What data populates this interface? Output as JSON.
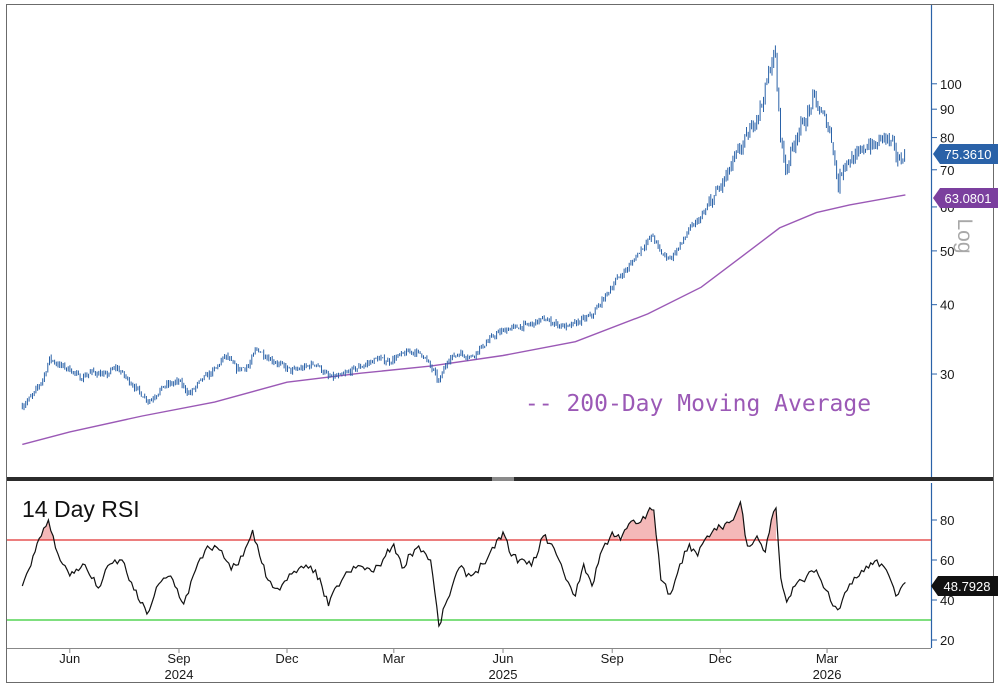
{
  "chart_data": [
    {
      "type": "line",
      "panel": "price",
      "scale": "log",
      "scale_label": "Log",
      "ylim": [
        21,
        125
      ],
      "y_ticks": [
        30,
        40,
        50,
        60,
        70,
        80,
        90,
        100
      ],
      "series": [
        {
          "role": "price",
          "style": "ohlc-bars",
          "color": "#2a62a8",
          "last_value": "75.3610",
          "points": [
            [
              "2024-04-22",
              26.3
            ],
            [
              "2024-05-01",
              27.5
            ],
            [
              "2024-05-10",
              29.6
            ],
            [
              "2024-05-15",
              32.0
            ],
            [
              "2024-05-22",
              31.2
            ],
            [
              "2024-06-01",
              30.6
            ],
            [
              "2024-06-10",
              29.5
            ],
            [
              "2024-06-20",
              30.3
            ],
            [
              "2024-07-01",
              29.8
            ],
            [
              "2024-07-10",
              30.9
            ],
            [
              "2024-07-20",
              29.3
            ],
            [
              "2024-08-01",
              27.5
            ],
            [
              "2024-08-07",
              26.8
            ],
            [
              "2024-08-20",
              28.6
            ],
            [
              "2024-09-01",
              29.1
            ],
            [
              "2024-09-10",
              27.6
            ],
            [
              "2024-09-20",
              29.3
            ],
            [
              "2024-10-01",
              30.5
            ],
            [
              "2024-10-10",
              32.4
            ],
            [
              "2024-10-20",
              30.6
            ],
            [
              "2024-10-30",
              31.0
            ],
            [
              "2024-11-05",
              33.4
            ],
            [
              "2024-11-15",
              32.1
            ],
            [
              "2024-11-25",
              31.2
            ],
            [
              "2024-12-05",
              30.4
            ],
            [
              "2024-12-15",
              30.8
            ],
            [
              "2024-12-25",
              31.4
            ],
            [
              "2025-01-05",
              29.6
            ],
            [
              "2025-01-15",
              29.7
            ],
            [
              "2025-01-25",
              30.5
            ],
            [
              "2025-02-05",
              31.2
            ],
            [
              "2025-02-15",
              32.0
            ],
            [
              "2025-02-25",
              31.6
            ],
            [
              "2025-03-05",
              32.3
            ],
            [
              "2025-03-15",
              33.0
            ],
            [
              "2025-03-25",
              32.6
            ],
            [
              "2025-04-04",
              30.2
            ],
            [
              "2025-04-08",
              29.0
            ],
            [
              "2025-04-15",
              31.8
            ],
            [
              "2025-04-25",
              32.7
            ],
            [
              "2025-05-05",
              32.2
            ],
            [
              "2025-05-15",
              33.7
            ],
            [
              "2025-05-25",
              35.3
            ],
            [
              "2025-06-05",
              36.2
            ],
            [
              "2025-06-15",
              36.5
            ],
            [
              "2025-06-25",
              36.9
            ],
            [
              "2025-07-05",
              37.7
            ],
            [
              "2025-07-15",
              37.0
            ],
            [
              "2025-07-25",
              36.4
            ],
            [
              "2025-08-05",
              37.4
            ],
            [
              "2025-08-15",
              38.3
            ],
            [
              "2025-08-25",
              41.1
            ],
            [
              "2025-09-05",
              44.5
            ],
            [
              "2025-09-15",
              46.8
            ],
            [
              "2025-09-25",
              50.3
            ],
            [
              "2025-10-05",
              53.3
            ],
            [
              "2025-10-12",
              49.5
            ],
            [
              "2025-10-20",
              48.5
            ],
            [
              "2025-10-28",
              51.0
            ],
            [
              "2025-11-05",
              54.7
            ],
            [
              "2025-11-15",
              57.5
            ],
            [
              "2025-11-25",
              62.3
            ],
            [
              "2025-12-05",
              67.3
            ],
            [
              "2025-12-15",
              74.7
            ],
            [
              "2025-12-25",
              81.3
            ],
            [
              "2026-01-05",
              91.8
            ],
            [
              "2026-01-12",
              107.0
            ],
            [
              "2026-01-16",
              115.0
            ],
            [
              "2026-01-20",
              84.0
            ],
            [
              "2026-01-25",
              69.5
            ],
            [
              "2026-01-30",
              76.0
            ],
            [
              "2026-02-05",
              82.6
            ],
            [
              "2026-02-12",
              86.9
            ],
            [
              "2026-02-18",
              95.0
            ],
            [
              "2026-02-22",
              89.7
            ],
            [
              "2026-03-01",
              85.3
            ],
            [
              "2026-03-06",
              77.5
            ],
            [
              "2026-03-10",
              65.0
            ],
            [
              "2026-03-15",
              72.0
            ],
            [
              "2026-03-25",
              73.6
            ],
            [
              "2026-04-05",
              78.0
            ],
            [
              "2026-04-10",
              76.7
            ],
            [
              "2026-04-17",
              80.8
            ],
            [
              "2026-04-25",
              77.7
            ],
            [
              "2026-05-01",
              72.3
            ],
            [
              "2026-05-06",
              75.4
            ]
          ]
        },
        {
          "role": "moving-average",
          "name": "-- 200-Day Moving Average",
          "color": "#9b59b6",
          "last_value": "63.0801",
          "points": [
            [
              "2024-04-22",
              22.4
            ],
            [
              "2024-06-01",
              23.6
            ],
            [
              "2024-08-01",
              25.2
            ],
            [
              "2024-10-01",
              26.7
            ],
            [
              "2024-12-01",
              29.0
            ],
            [
              "2025-02-01",
              30.1
            ],
            [
              "2025-04-01",
              31.0
            ],
            [
              "2025-06-01",
              32.4
            ],
            [
              "2025-08-01",
              34.3
            ],
            [
              "2025-10-01",
              38.5
            ],
            [
              "2025-11-15",
              43.0
            ],
            [
              "2025-12-20",
              49.0
            ],
            [
              "2026-01-20",
              55.0
            ],
            [
              "2026-02-20",
              58.6
            ],
            [
              "2026-03-20",
              60.5
            ],
            [
              "2026-05-06",
              63.08
            ]
          ]
        }
      ]
    },
    {
      "type": "line",
      "panel": "rsi",
      "title": "14 Day RSI",
      "ylim": [
        17,
        96
      ],
      "y_ticks": [
        20,
        40,
        60,
        80
      ],
      "overbought": 70,
      "oversold": 30,
      "overbought_color": "#e03030",
      "oversold_color": "#33cc33",
      "fill_color": "#f4b8b8",
      "series": [
        {
          "name": "14 Day RSI",
          "color": "#111111",
          "last_value": "48.7928",
          "points": [
            [
              "2024-04-22",
              47
            ],
            [
              "2024-05-01",
              62
            ],
            [
              "2024-05-08",
              72
            ],
            [
              "2024-05-14",
              80
            ],
            [
              "2024-05-20",
              66
            ],
            [
              "2024-06-01",
              52
            ],
            [
              "2024-06-12",
              58
            ],
            [
              "2024-06-25",
              46
            ],
            [
              "2024-07-05",
              58
            ],
            [
              "2024-07-15",
              60
            ],
            [
              "2024-07-25",
              45
            ],
            [
              "2024-08-05",
              33
            ],
            [
              "2024-08-15",
              48
            ],
            [
              "2024-08-25",
              52
            ],
            [
              "2024-09-05",
              38
            ],
            [
              "2024-09-15",
              55
            ],
            [
              "2024-09-25",
              67
            ],
            [
              "2024-10-05",
              65
            ],
            [
              "2024-10-15",
              55
            ],
            [
              "2024-10-25",
              62
            ],
            [
              "2024-11-02",
              75
            ],
            [
              "2024-11-08",
              62
            ],
            [
              "2024-11-15",
              50
            ],
            [
              "2024-11-25",
              45
            ],
            [
              "2024-12-05",
              53
            ],
            [
              "2024-12-15",
              56
            ],
            [
              "2024-12-25",
              55
            ],
            [
              "2025-01-05",
              37
            ],
            [
              "2025-01-12",
              47
            ],
            [
              "2025-01-22",
              54
            ],
            [
              "2025-02-01",
              57
            ],
            [
              "2025-02-12",
              54
            ],
            [
              "2025-02-22",
              62
            ],
            [
              "2025-03-01",
              68
            ],
            [
              "2025-03-08",
              56
            ],
            [
              "2025-03-15",
              63
            ],
            [
              "2025-03-22",
              67
            ],
            [
              "2025-04-01",
              60
            ],
            [
              "2025-04-08",
              27
            ],
            [
              "2025-04-15",
              40
            ],
            [
              "2025-04-25",
              56
            ],
            [
              "2025-05-05",
              52
            ],
            [
              "2025-05-15",
              58
            ],
            [
              "2025-05-25",
              66
            ],
            [
              "2025-06-01",
              74
            ],
            [
              "2025-06-08",
              62
            ],
            [
              "2025-06-15",
              60
            ],
            [
              "2025-06-25",
              57
            ],
            [
              "2025-07-05",
              72
            ],
            [
              "2025-07-12",
              68
            ],
            [
              "2025-07-22",
              54
            ],
            [
              "2025-08-01",
              42
            ],
            [
              "2025-08-08",
              58
            ],
            [
              "2025-08-15",
              47
            ],
            [
              "2025-08-22",
              63
            ],
            [
              "2025-09-01",
              74
            ],
            [
              "2025-09-08",
              70
            ],
            [
              "2025-09-15",
              78
            ],
            [
              "2025-09-25",
              79
            ],
            [
              "2025-10-01",
              84
            ],
            [
              "2025-10-06",
              85
            ],
            [
              "2025-10-12",
              50
            ],
            [
              "2025-10-20",
              43
            ],
            [
              "2025-10-28",
              58
            ],
            [
              "2025-11-05",
              68
            ],
            [
              "2025-11-12",
              62
            ],
            [
              "2025-11-20",
              72
            ],
            [
              "2025-11-28",
              75
            ],
            [
              "2025-12-05",
              78
            ],
            [
              "2025-12-12",
              80
            ],
            [
              "2025-12-18",
              89
            ],
            [
              "2025-12-24",
              67
            ],
            [
              "2026-01-01",
              72
            ],
            [
              "2026-01-08",
              64
            ],
            [
              "2026-01-13",
              80
            ],
            [
              "2026-01-17",
              86
            ],
            [
              "2026-01-21",
              51
            ],
            [
              "2026-01-26",
              39
            ],
            [
              "2026-02-02",
              47
            ],
            [
              "2026-02-12",
              52
            ],
            [
              "2026-02-20",
              55
            ],
            [
              "2026-02-28",
              45
            ],
            [
              "2026-03-06",
              37
            ],
            [
              "2026-03-12",
              36
            ],
            [
              "2026-03-20",
              48
            ],
            [
              "2026-03-28",
              52
            ],
            [
              "2026-04-05",
              56
            ],
            [
              "2026-04-12",
              60
            ],
            [
              "2026-04-20",
              55
            ],
            [
              "2026-04-28",
              42
            ],
            [
              "2026-05-06",
              48.79
            ]
          ]
        }
      ]
    }
  ],
  "x_axis": {
    "start": "2024-04-15",
    "end": "2026-05-20",
    "months": [
      {
        "label": "Jun",
        "date": "2024-06-01"
      },
      {
        "label": "Sep",
        "date": "2024-09-01"
      },
      {
        "label": "Dec",
        "date": "2024-12-01"
      },
      {
        "label": "Mar",
        "date": "2025-03-01"
      },
      {
        "label": "Jun",
        "date": "2025-06-01"
      },
      {
        "label": "Sep",
        "date": "2025-09-01"
      },
      {
        "label": "Dec",
        "date": "2025-12-01"
      },
      {
        "label": "Mar",
        "date": "2026-03-01"
      }
    ],
    "years": [
      {
        "label": "2024",
        "date": "2024-09-01"
      },
      {
        "label": "2025",
        "date": "2025-06-01"
      },
      {
        "label": "2026",
        "date": "2026-03-01"
      }
    ]
  },
  "colors": {
    "price": "#2a62a8",
    "price_badge": "#2a62a8",
    "ma": "#9b59b6",
    "ma_badge": "#7b3f9e",
    "rsi_badge": "#111111",
    "axis": "#2a62a8",
    "separator": "#2b2b2b",
    "grid": "#e8e8e8"
  }
}
